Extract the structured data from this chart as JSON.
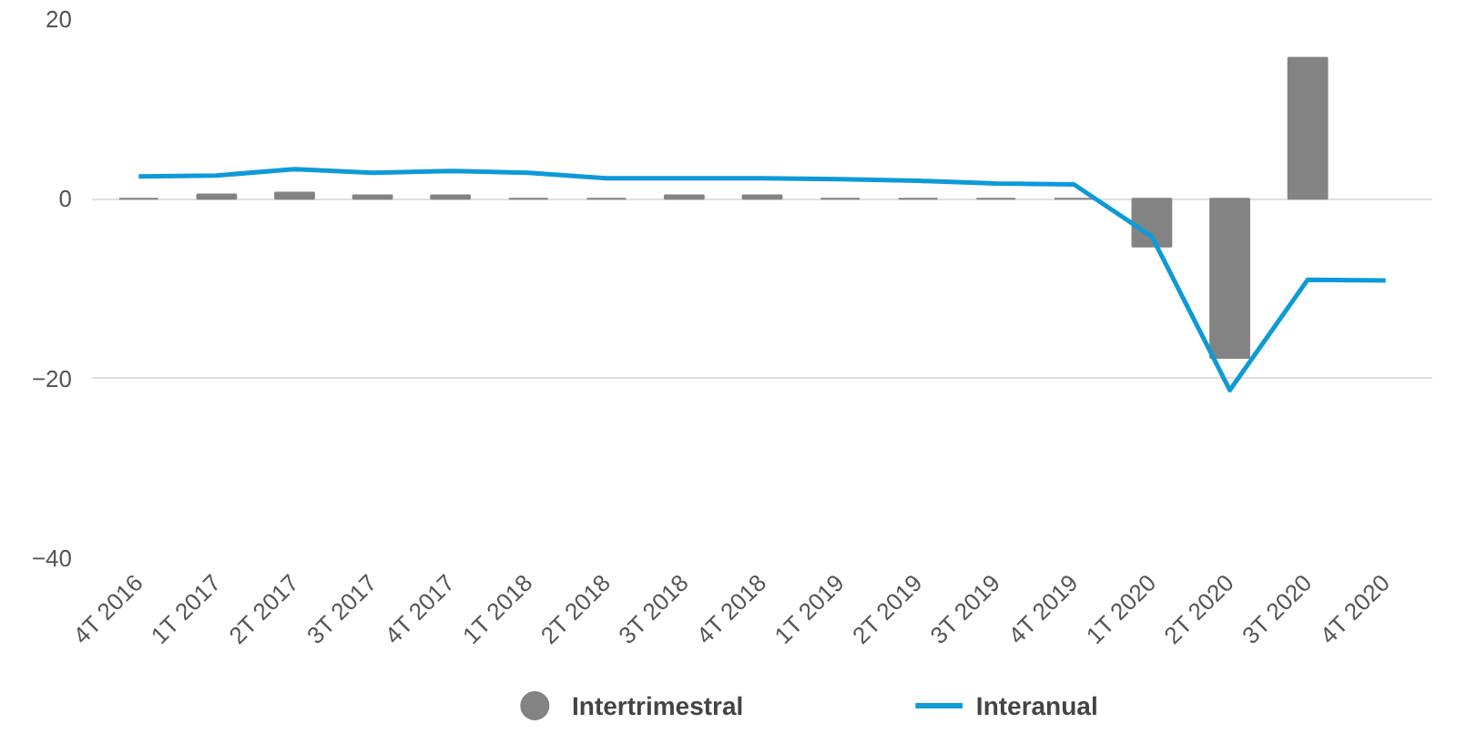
{
  "chart_data": {
    "type": "bar",
    "categories": [
      "4T 2016",
      "1T 2017",
      "2T 2017",
      "3T 2017",
      "4T 2017",
      "1T 2018",
      "2T 2018",
      "3T 2018",
      "4T 2018",
      "1T 2019",
      "2T 2019",
      "3T 2019",
      "4T 2019",
      "1T 2020",
      "2T 2020",
      "3T 2020",
      "4T 2020"
    ],
    "series": [
      {
        "name": "Intertrimestral",
        "color": "#838383",
        "values": [
          0,
          0.5,
          0.7,
          0.4,
          0.4,
          0,
          0,
          0.4,
          0.4,
          0,
          0,
          0,
          0,
          -5.3,
          -17.7,
          15.7,
          null
        ]
      },
      {
        "name": "Interanual",
        "type": "line",
        "color": "#0e9ad7",
        "values": [
          2.5,
          2.6,
          3.3,
          2.9,
          3.1,
          2.9,
          2.3,
          2.3,
          2.3,
          2.2,
          2.0,
          1.7,
          1.6,
          -4.2,
          -21.3,
          -9.0,
          -9.1
        ]
      }
    ],
    "ylim": [
      -40,
      20
    ],
    "yticks": [
      -40,
      -20,
      0,
      20
    ],
    "grid": "y",
    "legend": "bottom"
  }
}
